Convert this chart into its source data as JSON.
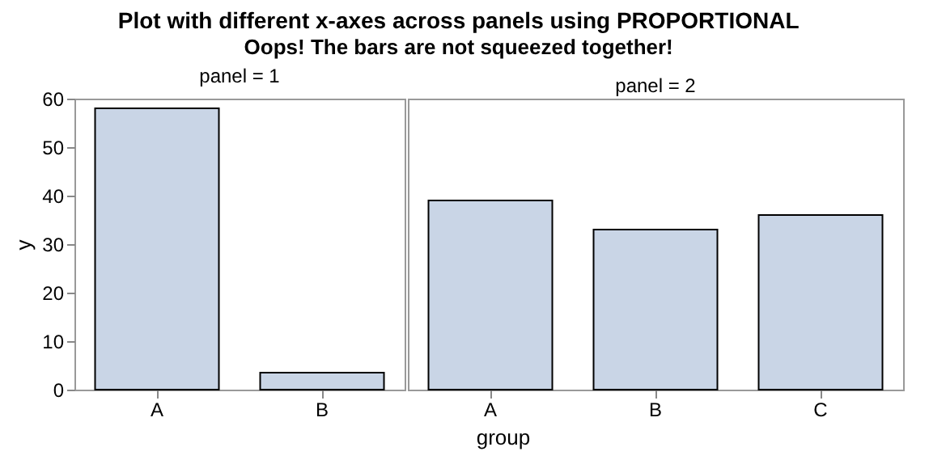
{
  "chart_data": [
    {
      "type": "bar",
      "title": "Plot with different x-axes across panels using PROPORTIONAL",
      "subtitle": "Oops! The bars are not squeezed together!",
      "annotations": [
        "panel = 1"
      ],
      "xlabel": "group",
      "ylabel": "y",
      "categories": [
        "A",
        "B"
      ],
      "values": [
        58,
        3.5
      ],
      "color": "#c9d5e6",
      "ylim": [
        0,
        60
      ],
      "yticks": [
        0,
        10,
        20,
        30,
        40,
        50,
        60
      ]
    },
    {
      "type": "bar",
      "annotations": [
        "panel = 2"
      ],
      "categories": [
        "A",
        "B",
        "C"
      ],
      "values": [
        39,
        33,
        36
      ],
      "color": "#c9d5e6",
      "ylim": [
        0,
        60
      ],
      "yticks": [
        0,
        10,
        20,
        30,
        40,
        50,
        60
      ],
      "tick_labels": "x"
    }
  ]
}
